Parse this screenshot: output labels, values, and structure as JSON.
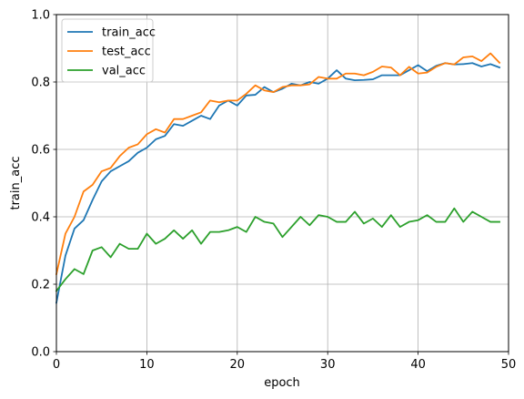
{
  "chart_data": {
    "type": "line",
    "title": "",
    "xlabel": "epoch",
    "ylabel": "train_acc",
    "xlim": [
      0,
      50
    ],
    "ylim": [
      0.0,
      1.0
    ],
    "grid": true,
    "legend_position": "top-left",
    "x_ticks": [
      0,
      10,
      20,
      30,
      40,
      50
    ],
    "x_tick_labels": [
      "0",
      "10",
      "20",
      "30",
      "40",
      "50"
    ],
    "y_ticks": [
      0.0,
      0.2,
      0.4,
      0.6,
      0.8,
      1.0
    ],
    "y_tick_labels": [
      "0.0",
      "0.2",
      "0.4",
      "0.6",
      "0.8",
      "1.0"
    ],
    "x": [
      0,
      1,
      2,
      3,
      4,
      5,
      6,
      7,
      8,
      9,
      10,
      11,
      12,
      13,
      14,
      15,
      16,
      17,
      18,
      19,
      20,
      21,
      22,
      23,
      24,
      25,
      26,
      27,
      28,
      29,
      30,
      31,
      32,
      33,
      34,
      35,
      36,
      37,
      38,
      39,
      40,
      41,
      42,
      43,
      44,
      45,
      46,
      47,
      48,
      49
    ],
    "series": [
      {
        "name": "train_acc",
        "color": "#1f77b4",
        "values": [
          0.145,
          0.285,
          0.365,
          0.39,
          0.45,
          0.505,
          0.535,
          0.55,
          0.565,
          0.59,
          0.605,
          0.63,
          0.64,
          0.675,
          0.67,
          0.685,
          0.7,
          0.69,
          0.73,
          0.745,
          0.73,
          0.76,
          0.762,
          0.785,
          0.77,
          0.78,
          0.795,
          0.79,
          0.8,
          0.795,
          0.81,
          0.835,
          0.81,
          0.805,
          0.806,
          0.808,
          0.82,
          0.82,
          0.82,
          0.835,
          0.85,
          0.832,
          0.848,
          0.856,
          0.852,
          0.853,
          0.856,
          0.846,
          0.853,
          0.843
        ]
      },
      {
        "name": "test_acc",
        "color": "#ff7f0e",
        "values": [
          0.23,
          0.35,
          0.4,
          0.475,
          0.495,
          0.535,
          0.545,
          0.58,
          0.605,
          0.615,
          0.645,
          0.66,
          0.65,
          0.69,
          0.69,
          0.7,
          0.71,
          0.745,
          0.74,
          0.745,
          0.745,
          0.765,
          0.79,
          0.775,
          0.77,
          0.785,
          0.79,
          0.79,
          0.793,
          0.815,
          0.81,
          0.81,
          0.825,
          0.825,
          0.82,
          0.83,
          0.846,
          0.843,
          0.82,
          0.845,
          0.825,
          0.828,
          0.845,
          0.856,
          0.852,
          0.873,
          0.876,
          0.862,
          0.885,
          0.857
        ]
      },
      {
        "name": "val_acc",
        "color": "#2ca02c",
        "values": [
          0.18,
          0.215,
          0.245,
          0.23,
          0.3,
          0.31,
          0.28,
          0.32,
          0.305,
          0.305,
          0.35,
          0.32,
          0.335,
          0.36,
          0.335,
          0.36,
          0.32,
          0.355,
          0.355,
          0.36,
          0.37,
          0.355,
          0.4,
          0.385,
          0.38,
          0.34,
          0.37,
          0.4,
          0.375,
          0.405,
          0.4,
          0.385,
          0.385,
          0.415,
          0.38,
          0.395,
          0.37,
          0.405,
          0.37,
          0.385,
          0.39,
          0.405,
          0.385,
          0.385,
          0.425,
          0.385,
          0.415,
          0.4,
          0.385,
          0.385
        ]
      }
    ]
  }
}
